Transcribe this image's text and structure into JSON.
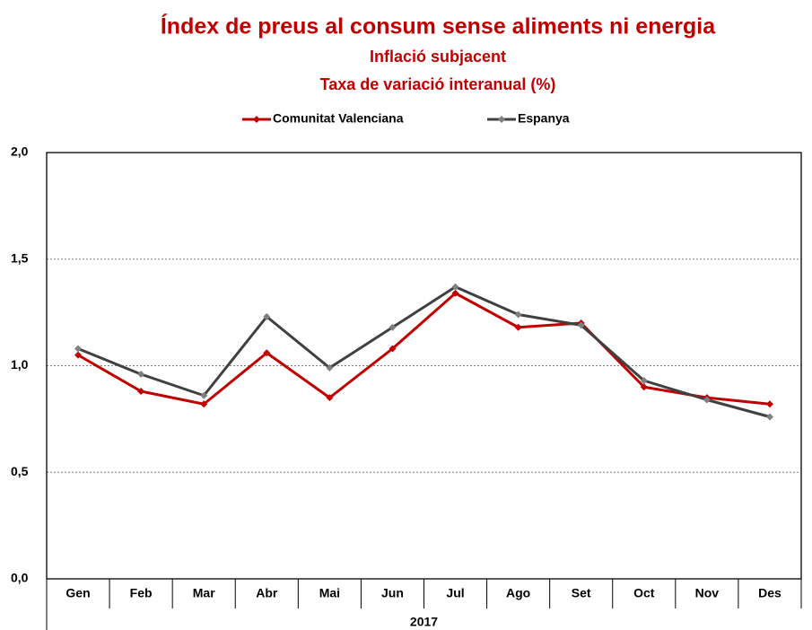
{
  "chart_data": {
    "type": "line",
    "title": "Índex de preus al consum sense aliments ni energia",
    "subtitle": [
      "Inflació subjacent",
      "Taxa de variació interanual (%)"
    ],
    "x_label": "2017",
    "categories": [
      "Gen",
      "Feb",
      "Mar",
      "Abr",
      "Mai",
      "Jun",
      "Jul",
      "Ago",
      "Set",
      "Oct",
      "Nov",
      "Des"
    ],
    "series": [
      {
        "name": "Comunitat Valenciana",
        "color": "#c00000",
        "marker_color": "#c00000",
        "values": [
          1.05,
          0.88,
          0.82,
          1.06,
          0.85,
          1.08,
          1.34,
          1.18,
          1.2,
          0.9,
          0.85,
          0.82
        ]
      },
      {
        "name": "Espanya",
        "color": "#404040",
        "marker_color": "#7f7f7f",
        "values": [
          1.08,
          0.96,
          0.86,
          1.23,
          0.99,
          1.18,
          1.37,
          1.24,
          1.19,
          0.93,
          0.84,
          0.76
        ]
      }
    ],
    "ylim": [
      0,
      2
    ],
    "yticks": [
      {
        "value": 0,
        "label": "0,0"
      },
      {
        "value": 0.5,
        "label": "0,5"
      },
      {
        "value": 1,
        "label": "1,0"
      },
      {
        "value": 1.5,
        "label": "1,5"
      },
      {
        "value": 2,
        "label": "2,0"
      }
    ],
    "grid": true,
    "legend": "top"
  }
}
